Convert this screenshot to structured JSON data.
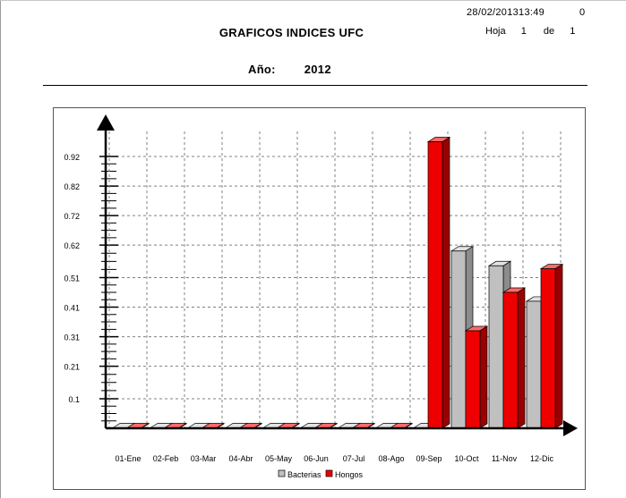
{
  "header": {
    "timestamp": "28/02/201313:49",
    "page_number": "0",
    "title": "GRAFICOS INDICES UFC",
    "sheet_label": "Hoja",
    "sheet_current": "1",
    "sheet_of_label": "de",
    "sheet_total": "1",
    "year_label": "Año:",
    "year_value": "2012"
  },
  "colors": {
    "bacterias": "#c0c0c0",
    "hongos": "#ee0000",
    "grid": "#808080",
    "axis": "#000000"
  },
  "chart_data": {
    "type": "bar",
    "categories": [
      "01-Ene",
      "02-Feb",
      "03-Mar",
      "04-Abr",
      "05-May",
      "06-Jun",
      "07-Jul",
      "08-Ago",
      "09-Sep",
      "10-Oct",
      "11-Nov",
      "12-Dic"
    ],
    "series": [
      {
        "name": "Bacterias",
        "values": [
          0,
          0,
          0,
          0,
          0,
          0,
          0,
          0,
          0,
          0.6,
          0.55,
          0.43
        ]
      },
      {
        "name": "Hongos",
        "values": [
          0,
          0,
          0,
          0,
          0,
          0,
          0,
          0,
          0.97,
          0.33,
          0.46,
          0.54
        ]
      }
    ],
    "y_ticks": [
      0.1,
      0.21,
      0.31,
      0.41,
      0.51,
      0.62,
      0.72,
      0.82,
      0.92
    ],
    "y_tick_labels": [
      "0.1",
      "0.21",
      "0.31",
      "0.41",
      "0.51",
      "0.62",
      "0.72",
      "0.82",
      "0.92"
    ],
    "ylim": [
      0,
      1.02
    ],
    "grid": true,
    "legend_position": "bottom-center",
    "title": "",
    "xlabel": "",
    "ylabel": ""
  }
}
